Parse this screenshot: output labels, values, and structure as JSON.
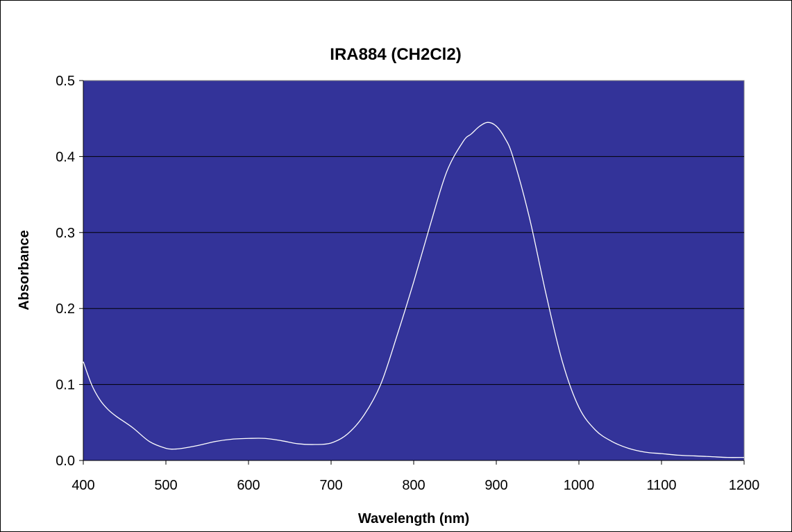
{
  "chart_data": {
    "type": "line",
    "title": "IRA884 (CH2Cl2)",
    "xlabel": "Wavelength (nm)",
    "ylabel": "Absorbance",
    "xlim": [
      400,
      1200
    ],
    "ylim": [
      0.0,
      0.5
    ],
    "x_ticks": [
      400,
      500,
      600,
      700,
      800,
      900,
      1000,
      1100,
      1200
    ],
    "y_ticks": [
      "0.0",
      "0.1",
      "0.2",
      "0.3",
      "0.4",
      "0.5"
    ],
    "x_tick_labels": [
      "400",
      "500",
      "600",
      "700",
      "800",
      "900",
      "1000",
      "1100",
      "1200"
    ],
    "grid": "horizontal",
    "plot_background": "#333399",
    "line_color": "#ffffff",
    "series": [
      {
        "x": [
          400,
          410,
          420,
          430,
          440,
          460,
          480,
          500,
          510,
          520,
          540,
          560,
          580,
          600,
          620,
          640,
          660,
          680,
          700,
          720,
          740,
          760,
          780,
          800,
          820,
          840,
          860,
          870,
          880,
          890,
          900,
          910,
          920,
          940,
          960,
          980,
          1000,
          1020,
          1040,
          1060,
          1080,
          1100,
          1120,
          1140,
          1160,
          1180,
          1200
        ],
        "y": [
          0.13,
          0.1,
          0.08,
          0.067,
          0.058,
          0.043,
          0.025,
          0.016,
          0.015,
          0.016,
          0.02,
          0.025,
          0.028,
          0.029,
          0.029,
          0.026,
          0.022,
          0.021,
          0.023,
          0.035,
          0.06,
          0.1,
          0.165,
          0.235,
          0.31,
          0.38,
          0.42,
          0.43,
          0.44,
          0.445,
          0.44,
          0.425,
          0.4,
          0.32,
          0.22,
          0.13,
          0.07,
          0.04,
          0.025,
          0.016,
          0.011,
          0.009,
          0.007,
          0.006,
          0.005,
          0.004,
          0.004
        ]
      }
    ]
  }
}
